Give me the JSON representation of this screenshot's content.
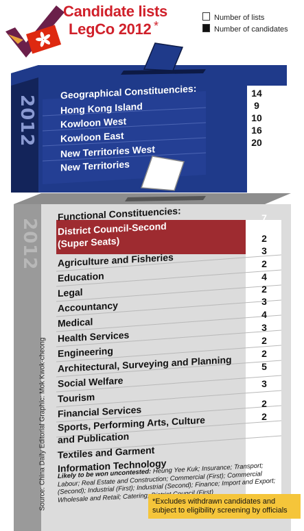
{
  "header": {
    "title_line1": "Candidate lists",
    "title_line2": "LegCo 2012",
    "asterisk": "*",
    "legend": {
      "lists_label": "Number of lists",
      "candidates_label": "Number of candidates"
    }
  },
  "blue_box": {
    "year": "2012",
    "heading": "Geographical Constituencies:",
    "heading_count": "14",
    "items": [
      {
        "label": "Hong Kong Island",
        "count": "9"
      },
      {
        "label": "Kowloon West",
        "count": "10"
      },
      {
        "label": "Kowloon East",
        "count": "16"
      },
      {
        "label": "New Territories West",
        "count": "20"
      },
      {
        "label": "New Territories",
        "count": ""
      }
    ]
  },
  "gray_box": {
    "year": "2012",
    "heading": "Functional Constituencies:",
    "heading_count": "7",
    "items": [
      {
        "label": "District Council-Second",
        "count": "2"
      },
      {
        "label": "(Super Seats)",
        "count": "3"
      },
      {
        "label": "Agriculture and Fisheries",
        "count": "2"
      },
      {
        "label": "Education",
        "count": "4"
      },
      {
        "label": "Legal",
        "count": "2"
      },
      {
        "label": "Accountancy",
        "count": "3"
      },
      {
        "label": "Medical",
        "count": "4"
      },
      {
        "label": "Health Services",
        "count": "3"
      },
      {
        "label": "Engineering",
        "count": "2"
      },
      {
        "label": "Architectural, Surveying and Planning",
        "count": "2"
      },
      {
        "label": "Social Welfare",
        "count": "5"
      },
      {
        "label": "Tourism",
        "count": ""
      },
      {
        "label": "Financial Services",
        "count": "3"
      },
      {
        "label": "Sports, Performing Arts, Culture",
        "count": ""
      },
      {
        "label": "and Publication",
        "count": "2"
      },
      {
        "label": "Textiles and Garment",
        "count": "2"
      },
      {
        "label": "Information Technology",
        "count": ""
      }
    ],
    "uncontested_heading": "Likely to be won uncontested:",
    "uncontested_body": "Heung Yee Kuk; Insurance; Transport; Labour; Real Estate and Construction; Commercial (First); Commercial (Second); Industrial (First); Industrial (Second); Finance; Import and Export; Wholesale and Retail; Catering; District Council (First)"
  },
  "footnote": "*Excludes withdrawn candidates and subject to eligibility screening by officials",
  "source": "Source: China Daily Editorial  Graphic: Mok Kwok-cheong",
  "colors": {
    "title_red": "#d0202a",
    "blue_front": "#1f3a8a",
    "blue_dark": "#13245a",
    "gray_front": "#dcdcdc",
    "gray_side": "#9a9a9a",
    "highlight_red": "#9e2b30",
    "footnote_yellow": "#f5c53a",
    "hk_flag_red": "#de2910",
    "check_purple": "#6b1f4a",
    "check_orange": "#e8a13a"
  }
}
